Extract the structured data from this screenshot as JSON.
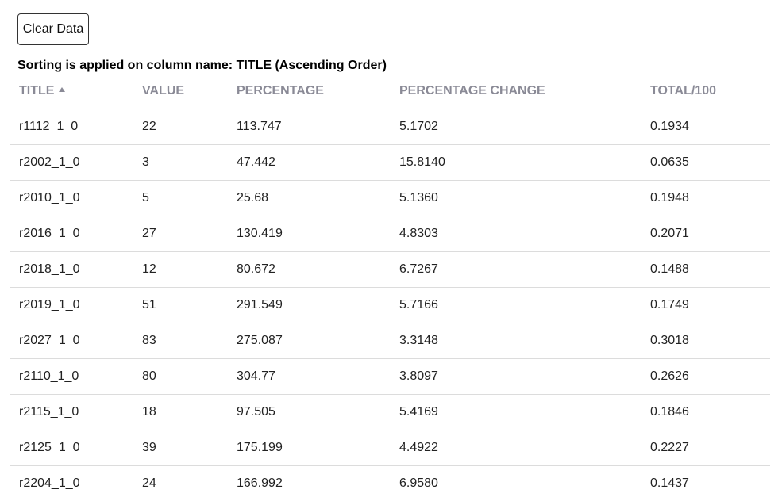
{
  "toolbar": {
    "clear_label": "Clear Data"
  },
  "sort_note": "Sorting is applied on column name: TITLE (Ascending Order)",
  "table": {
    "columns": [
      "TITLE",
      "VALUE",
      "PERCENTAGE",
      "PERCENTAGE CHANGE",
      "TOTAL/100"
    ],
    "sorted_column": "TITLE",
    "sort_direction": "ascending",
    "rows": [
      [
        "r1112_1_0",
        "22",
        "113.747",
        "5.1702",
        "0.1934"
      ],
      [
        "r2002_1_0",
        "3",
        "47.442",
        "15.8140",
        "0.0635"
      ],
      [
        "r2010_1_0",
        "5",
        "25.68",
        "5.1360",
        "0.1948"
      ],
      [
        "r2016_1_0",
        "27",
        "130.419",
        "4.8303",
        "0.2071"
      ],
      [
        "r2018_1_0",
        "12",
        "80.672",
        "6.7267",
        "0.1488"
      ],
      [
        "r2019_1_0",
        "51",
        "291.549",
        "5.7166",
        "0.1749"
      ],
      [
        "r2027_1_0",
        "83",
        "275.087",
        "3.3148",
        "0.3018"
      ],
      [
        "r2110_1_0",
        "80",
        "304.77",
        "3.8097",
        "0.2626"
      ],
      [
        "r2115_1_0",
        "18",
        "97.505",
        "5.4169",
        "0.1846"
      ],
      [
        "r2125_1_0",
        "39",
        "175.199",
        "4.4922",
        "0.2227"
      ],
      [
        "r2204_1_0",
        "24",
        "166.992",
        "6.9580",
        "0.1437"
      ]
    ]
  }
}
